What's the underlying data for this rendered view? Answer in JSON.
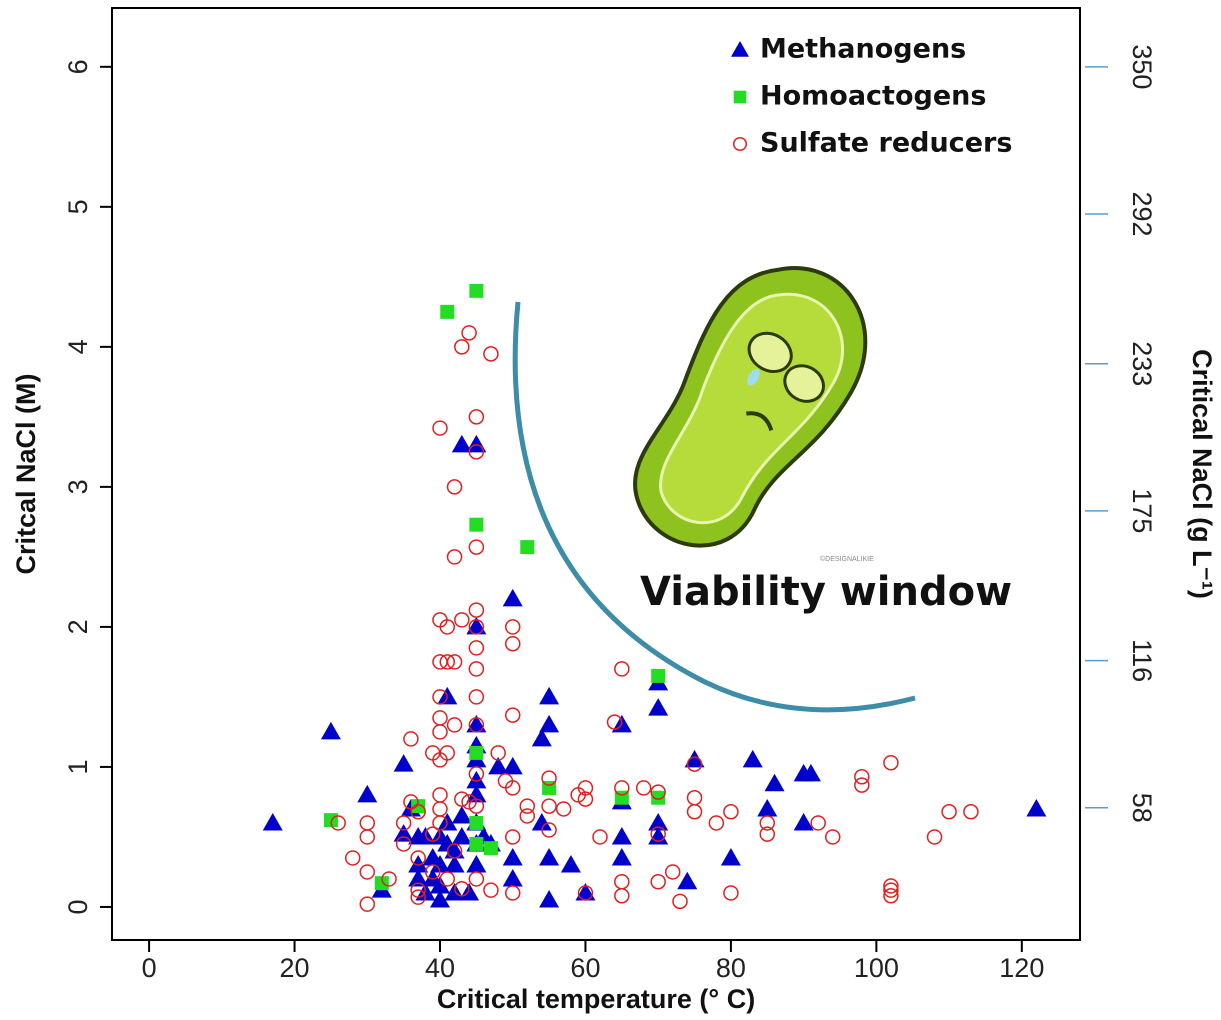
{
  "chart_data": {
    "type": "scatter",
    "xlabel": "Critical temperature (° C)",
    "ylabel": "Critcal NaCl (M)",
    "y2label": "Critical NaCl (g L⁻¹)",
    "xlim": [
      -5.1,
      128.0
    ],
    "xticks": [
      0,
      20,
      40,
      60,
      80,
      100,
      120
    ],
    "ylim": [
      -0.236,
      6.42
    ],
    "yticks": [
      0,
      1,
      2,
      3,
      4,
      5,
      6
    ],
    "y2lim": [
      5.9,
      373.2
    ],
    "y2ticks": [
      58,
      116,
      175,
      233,
      292,
      350
    ],
    "legend": "top-right",
    "annotations": [
      "Viability window",
      "©DESIGNALIKIE"
    ],
    "series": [
      {
        "name": "Methanogens",
        "color": "#0000cc",
        "marker": "triangle",
        "x": [
          17,
          25,
          30,
          32,
          35,
          35,
          36,
          37,
          37,
          37,
          38,
          38,
          39,
          39,
          40,
          40,
          40,
          40,
          41,
          41,
          41,
          42,
          42,
          42,
          43,
          43,
          43,
          44,
          45,
          45,
          45,
          45,
          45,
          45,
          45,
          45,
          45,
          45,
          46,
          47,
          48,
          50,
          50,
          50,
          50,
          54,
          54,
          55,
          55,
          55,
          55,
          58,
          60,
          65,
          65,
          65,
          65,
          70,
          70,
          70,
          70,
          74,
          75,
          80,
          83,
          85,
          86,
          90,
          90,
          91,
          122
        ],
        "values": [
          0.6,
          1.25,
          0.8,
          0.12,
          1.02,
          0.52,
          0.7,
          0.5,
          0.3,
          0.2,
          0.1,
          0.5,
          0.35,
          0.2,
          0.05,
          0.5,
          0.3,
          0.15,
          1.5,
          0.45,
          0.6,
          0.3,
          0.4,
          0.1,
          3.3,
          0.65,
          0.5,
          0.1,
          3.3,
          2.0,
          1.3,
          1.15,
          1.05,
          0.9,
          0.8,
          0.6,
          0.45,
          0.3,
          0.5,
          0.45,
          1.0,
          2.2,
          1.0,
          0.35,
          0.2,
          1.2,
          0.6,
          1.5,
          1.3,
          0.35,
          0.05,
          0.3,
          0.1,
          1.3,
          0.75,
          0.5,
          0.35,
          1.6,
          1.42,
          0.6,
          0.5,
          0.18,
          1.05,
          0.35,
          1.05,
          0.7,
          0.88,
          0.95,
          0.6,
          0.95,
          0.7
        ]
      },
      {
        "name": "Homoactogens",
        "color": "#22dd22",
        "marker": "square",
        "x": [
          25,
          32,
          37,
          41,
          45,
          45,
          52,
          45,
          45,
          45,
          47,
          55,
          65,
          70,
          70
        ],
        "values": [
          0.62,
          0.17,
          0.72,
          4.25,
          4.4,
          2.73,
          2.57,
          1.1,
          0.6,
          0.45,
          0.42,
          0.85,
          0.78,
          1.65,
          0.78
        ]
      },
      {
        "name": "Sulfate reducers",
        "color": "#e02020",
        "marker": "circle-open",
        "x": [
          40,
          43,
          44,
          47,
          45,
          45,
          42,
          42,
          45,
          40,
          41,
          43,
          45,
          45,
          45,
          40,
          41,
          42,
          45,
          40,
          45,
          40,
          42,
          45,
          40,
          50,
          50,
          50,
          36,
          39,
          40,
          41,
          48,
          45,
          40,
          40,
          43,
          44,
          45,
          49,
          50,
          52,
          55,
          55,
          57,
          59,
          60,
          60,
          65,
          64,
          65,
          68,
          70,
          75,
          75,
          75,
          78,
          80,
          85,
          85,
          92,
          94,
          98,
          98,
          102,
          108,
          110,
          113,
          102,
          102,
          102,
          35,
          36,
          37,
          37,
          37,
          37,
          39,
          39,
          40,
          41,
          42,
          43,
          45,
          47,
          50,
          50,
          52,
          55,
          60,
          62,
          65,
          65,
          70,
          70,
          72,
          73,
          80,
          28,
          30,
          30,
          33,
          35,
          26,
          30,
          30
        ],
        "values": [
          3.42,
          4.0,
          4.1,
          3.95,
          3.5,
          3.25,
          3.0,
          2.5,
          2.57,
          2.05,
          2.0,
          2.05,
          2.12,
          2.0,
          1.85,
          1.75,
          1.75,
          1.75,
          1.7,
          1.5,
          1.5,
          1.35,
          1.3,
          1.3,
          1.25,
          2.0,
          1.88,
          1.37,
          1.2,
          1.1,
          1.05,
          1.1,
          1.1,
          0.95,
          0.8,
          0.7,
          0.77,
          0.75,
          0.72,
          0.9,
          0.85,
          0.65,
          0.92,
          0.72,
          0.7,
          0.8,
          0.85,
          0.77,
          1.7,
          1.32,
          0.85,
          0.85,
          0.82,
          1.02,
          0.78,
          0.68,
          0.6,
          0.68,
          0.6,
          0.52,
          0.6,
          0.5,
          0.93,
          0.87,
          1.03,
          0.5,
          0.68,
          0.68,
          0.15,
          0.12,
          0.08,
          0.6,
          0.75,
          0.68,
          0.35,
          0.12,
          0.07,
          0.52,
          0.25,
          0.6,
          0.2,
          0.4,
          0.13,
          0.2,
          0.12,
          0.5,
          0.1,
          0.72,
          0.55,
          0.1,
          0.5,
          0.18,
          0.08,
          0.18,
          0.52,
          0.25,
          0.04,
          0.1,
          0.35,
          0.6,
          0.02,
          0.2,
          0.45,
          0.6,
          0.5,
          0.25
        ]
      }
    ]
  }
}
